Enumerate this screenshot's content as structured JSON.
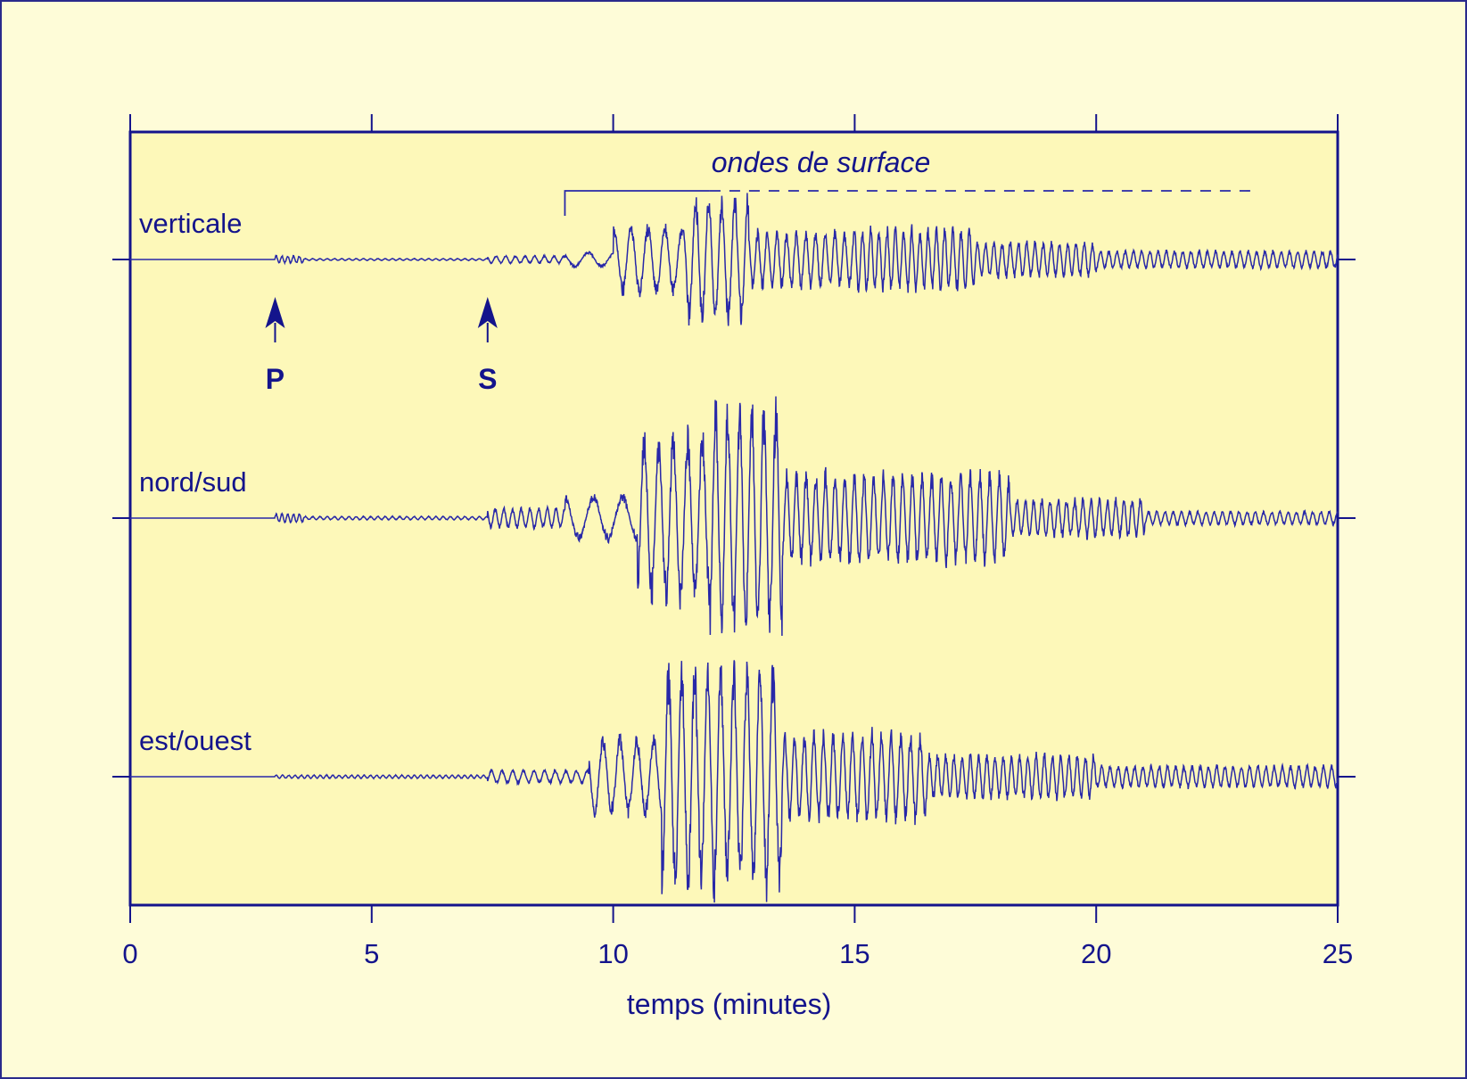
{
  "colors": {
    "background": "#fefcd8",
    "plot_fill": "#fdf8b9",
    "ink": "#14148c",
    "trace": "#2828a8"
  },
  "chart_data": {
    "type": "line",
    "xlabel": "temps (minutes)",
    "xlim": [
      0,
      25
    ],
    "xticks": [
      0,
      5,
      10,
      15,
      20,
      25
    ],
    "grid": false,
    "series": [
      {
        "name": "verticale",
        "segments": [
          {
            "from": 0,
            "to": 3.0,
            "amplitude": 0,
            "period": 0.3
          },
          {
            "from": 3.0,
            "to": 3.6,
            "amplitude": 0.06,
            "period": 0.12
          },
          {
            "from": 3.6,
            "to": 7.4,
            "amplitude": 0.015,
            "period": 0.15
          },
          {
            "from": 7.4,
            "to": 9.0,
            "amplitude": 0.06,
            "period": 0.2
          },
          {
            "from": 9.0,
            "to": 10.0,
            "amplitude": 0.12,
            "period": 0.55
          },
          {
            "from": 10.0,
            "to": 11.5,
            "amplitude": 0.55,
            "period": 0.35
          },
          {
            "from": 11.5,
            "to": 12.8,
            "amplitude": 1.0,
            "period": 0.27
          },
          {
            "from": 12.8,
            "to": 15.0,
            "amplitude": 0.45,
            "period": 0.2
          },
          {
            "from": 15.0,
            "to": 17.5,
            "amplitude": 0.5,
            "period": 0.17
          },
          {
            "from": 17.5,
            "to": 20.0,
            "amplitude": 0.28,
            "period": 0.17
          },
          {
            "from": 20.0,
            "to": 25.0,
            "amplitude": 0.14,
            "period": 0.17
          }
        ]
      },
      {
        "name": "nord/sud",
        "segments": [
          {
            "from": 0,
            "to": 3.0,
            "amplitude": 0,
            "period": 0.3
          },
          {
            "from": 3.0,
            "to": 3.6,
            "amplitude": 0.04,
            "period": 0.12
          },
          {
            "from": 3.6,
            "to": 7.4,
            "amplitude": 0.015,
            "period": 0.15
          },
          {
            "from": 7.4,
            "to": 9.0,
            "amplitude": 0.09,
            "period": 0.18
          },
          {
            "from": 9.0,
            "to": 10.5,
            "amplitude": 0.2,
            "period": 0.6
          },
          {
            "from": 10.5,
            "to": 12.0,
            "amplitude": 0.75,
            "period": 0.3
          },
          {
            "from": 12.0,
            "to": 13.5,
            "amplitude": 1.0,
            "period": 0.25
          },
          {
            "from": 13.5,
            "to": 18.2,
            "amplitude": 0.4,
            "period": 0.2
          },
          {
            "from": 18.2,
            "to": 21.0,
            "amplitude": 0.17,
            "period": 0.17
          },
          {
            "from": 21.0,
            "to": 25.0,
            "amplitude": 0.06,
            "period": 0.17
          }
        ]
      },
      {
        "name": "est/ouest",
        "segments": [
          {
            "from": 0,
            "to": 3.0,
            "amplitude": 0,
            "period": 0.3
          },
          {
            "from": 3.0,
            "to": 7.4,
            "amplitude": 0.015,
            "period": 0.13
          },
          {
            "from": 7.4,
            "to": 9.5,
            "amplitude": 0.06,
            "period": 0.22
          },
          {
            "from": 9.5,
            "to": 11.0,
            "amplitude": 0.35,
            "period": 0.35
          },
          {
            "from": 11.0,
            "to": 13.5,
            "amplitude": 1.0,
            "period": 0.27
          },
          {
            "from": 13.5,
            "to": 16.5,
            "amplitude": 0.4,
            "period": 0.2
          },
          {
            "from": 16.5,
            "to": 20.0,
            "amplitude": 0.2,
            "period": 0.17
          },
          {
            "from": 20.0,
            "to": 25.0,
            "amplitude": 0.1,
            "period": 0.17
          }
        ]
      }
    ],
    "annotations": [
      {
        "label": "P",
        "x": 3.0,
        "type": "arrow"
      },
      {
        "label": "S",
        "x": 7.4,
        "type": "arrow"
      },
      {
        "label": "ondes de surface",
        "from": 9.0,
        "to": 23.3,
        "type": "bracket"
      }
    ]
  }
}
